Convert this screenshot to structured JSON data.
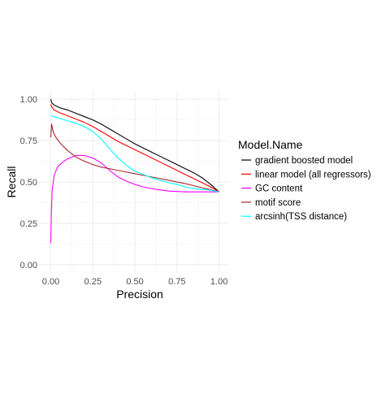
{
  "chart_data": {
    "type": "line",
    "xlabel": "Precision",
    "ylabel": "Recall",
    "xlim": [
      -0.07,
      1.05
    ],
    "ylim": [
      -0.05,
      1.05
    ],
    "x_ticks": [
      0.0,
      0.25,
      0.5,
      0.75,
      1.0
    ],
    "x_tick_labels": [
      "0.00",
      "0.25",
      "0.50",
      "0.75",
      "1.00"
    ],
    "y_ticks": [
      0.0,
      0.25,
      0.5,
      0.75,
      1.0
    ],
    "y_tick_labels": [
      "0.00",
      "0.25",
      "0.50",
      "0.75",
      "1.00"
    ],
    "grid": true,
    "legend": {
      "title": "Model.Name",
      "placement": "right"
    },
    "series": [
      {
        "name": "gradient boosted model",
        "color": "#000000",
        "points": [
          [
            0.0,
            1.0
          ],
          [
            0.005,
            0.98
          ],
          [
            0.02,
            0.965
          ],
          [
            0.05,
            0.95
          ],
          [
            0.1,
            0.935
          ],
          [
            0.15,
            0.915
          ],
          [
            0.2,
            0.895
          ],
          [
            0.25,
            0.875
          ],
          [
            0.3,
            0.85
          ],
          [
            0.35,
            0.82
          ],
          [
            0.4,
            0.79
          ],
          [
            0.45,
            0.76
          ],
          [
            0.5,
            0.73
          ],
          [
            0.55,
            0.705
          ],
          [
            0.6,
            0.68
          ],
          [
            0.65,
            0.655
          ],
          [
            0.7,
            0.63
          ],
          [
            0.75,
            0.605
          ],
          [
            0.8,
            0.58
          ],
          [
            0.85,
            0.555
          ],
          [
            0.9,
            0.525
          ],
          [
            0.95,
            0.485
          ],
          [
            1.0,
            0.44
          ]
        ]
      },
      {
        "name": "linear model (all regressors)",
        "color": "#ff0000",
        "points": [
          [
            0.0,
            0.97
          ],
          [
            0.005,
            0.955
          ],
          [
            0.02,
            0.935
          ],
          [
            0.05,
            0.92
          ],
          [
            0.1,
            0.9
          ],
          [
            0.15,
            0.88
          ],
          [
            0.2,
            0.86
          ],
          [
            0.25,
            0.835
          ],
          [
            0.3,
            0.805
          ],
          [
            0.35,
            0.775
          ],
          [
            0.4,
            0.745
          ],
          [
            0.45,
            0.72
          ],
          [
            0.5,
            0.695
          ],
          [
            0.55,
            0.67
          ],
          [
            0.6,
            0.645
          ],
          [
            0.65,
            0.62
          ],
          [
            0.7,
            0.595
          ],
          [
            0.75,
            0.57
          ],
          [
            0.8,
            0.545
          ],
          [
            0.85,
            0.52
          ],
          [
            0.9,
            0.495
          ],
          [
            0.95,
            0.47
          ],
          [
            1.0,
            0.44
          ]
        ]
      },
      {
        "name": "GC content",
        "color": "#ff00ff",
        "points": [
          [
            0.0,
            0.13
          ],
          [
            0.003,
            0.3
          ],
          [
            0.008,
            0.45
          ],
          [
            0.02,
            0.54
          ],
          [
            0.04,
            0.59
          ],
          [
            0.07,
            0.62
          ],
          [
            0.1,
            0.64
          ],
          [
            0.15,
            0.66
          ],
          [
            0.2,
            0.66
          ],
          [
            0.25,
            0.645
          ],
          [
            0.3,
            0.615
          ],
          [
            0.35,
            0.57
          ],
          [
            0.4,
            0.53
          ],
          [
            0.45,
            0.505
          ],
          [
            0.5,
            0.485
          ],
          [
            0.55,
            0.47
          ],
          [
            0.6,
            0.46
          ],
          [
            0.7,
            0.445
          ],
          [
            0.8,
            0.44
          ],
          [
            0.9,
            0.44
          ],
          [
            1.0,
            0.44
          ]
        ]
      },
      {
        "name": "motif score",
        "color": "#a52a2a",
        "points": [
          [
            0.0,
            0.77
          ],
          [
            0.005,
            0.85
          ],
          [
            0.015,
            0.8
          ],
          [
            0.03,
            0.77
          ],
          [
            0.06,
            0.73
          ],
          [
            0.1,
            0.69
          ],
          [
            0.15,
            0.65
          ],
          [
            0.2,
            0.625
          ],
          [
            0.25,
            0.605
          ],
          [
            0.3,
            0.59
          ],
          [
            0.4,
            0.57
          ],
          [
            0.5,
            0.55
          ],
          [
            0.6,
            0.53
          ],
          [
            0.7,
            0.51
          ],
          [
            0.8,
            0.49
          ],
          [
            0.9,
            0.465
          ],
          [
            1.0,
            0.44
          ]
        ]
      },
      {
        "name": "arcsinh(TSS distance)",
        "color": "#00ffff",
        "points": [
          [
            0.0,
            0.9
          ],
          [
            0.02,
            0.895
          ],
          [
            0.05,
            0.885
          ],
          [
            0.1,
            0.87
          ],
          [
            0.15,
            0.855
          ],
          [
            0.2,
            0.835
          ],
          [
            0.25,
            0.805
          ],
          [
            0.3,
            0.76
          ],
          [
            0.35,
            0.7
          ],
          [
            0.4,
            0.645
          ],
          [
            0.45,
            0.6
          ],
          [
            0.5,
            0.565
          ],
          [
            0.55,
            0.545
          ],
          [
            0.6,
            0.525
          ],
          [
            0.65,
            0.51
          ],
          [
            0.7,
            0.495
          ],
          [
            0.75,
            0.485
          ],
          [
            0.8,
            0.47
          ],
          [
            0.85,
            0.46
          ],
          [
            0.9,
            0.455
          ],
          [
            0.95,
            0.45
          ],
          [
            1.0,
            0.44
          ]
        ]
      }
    ]
  }
}
